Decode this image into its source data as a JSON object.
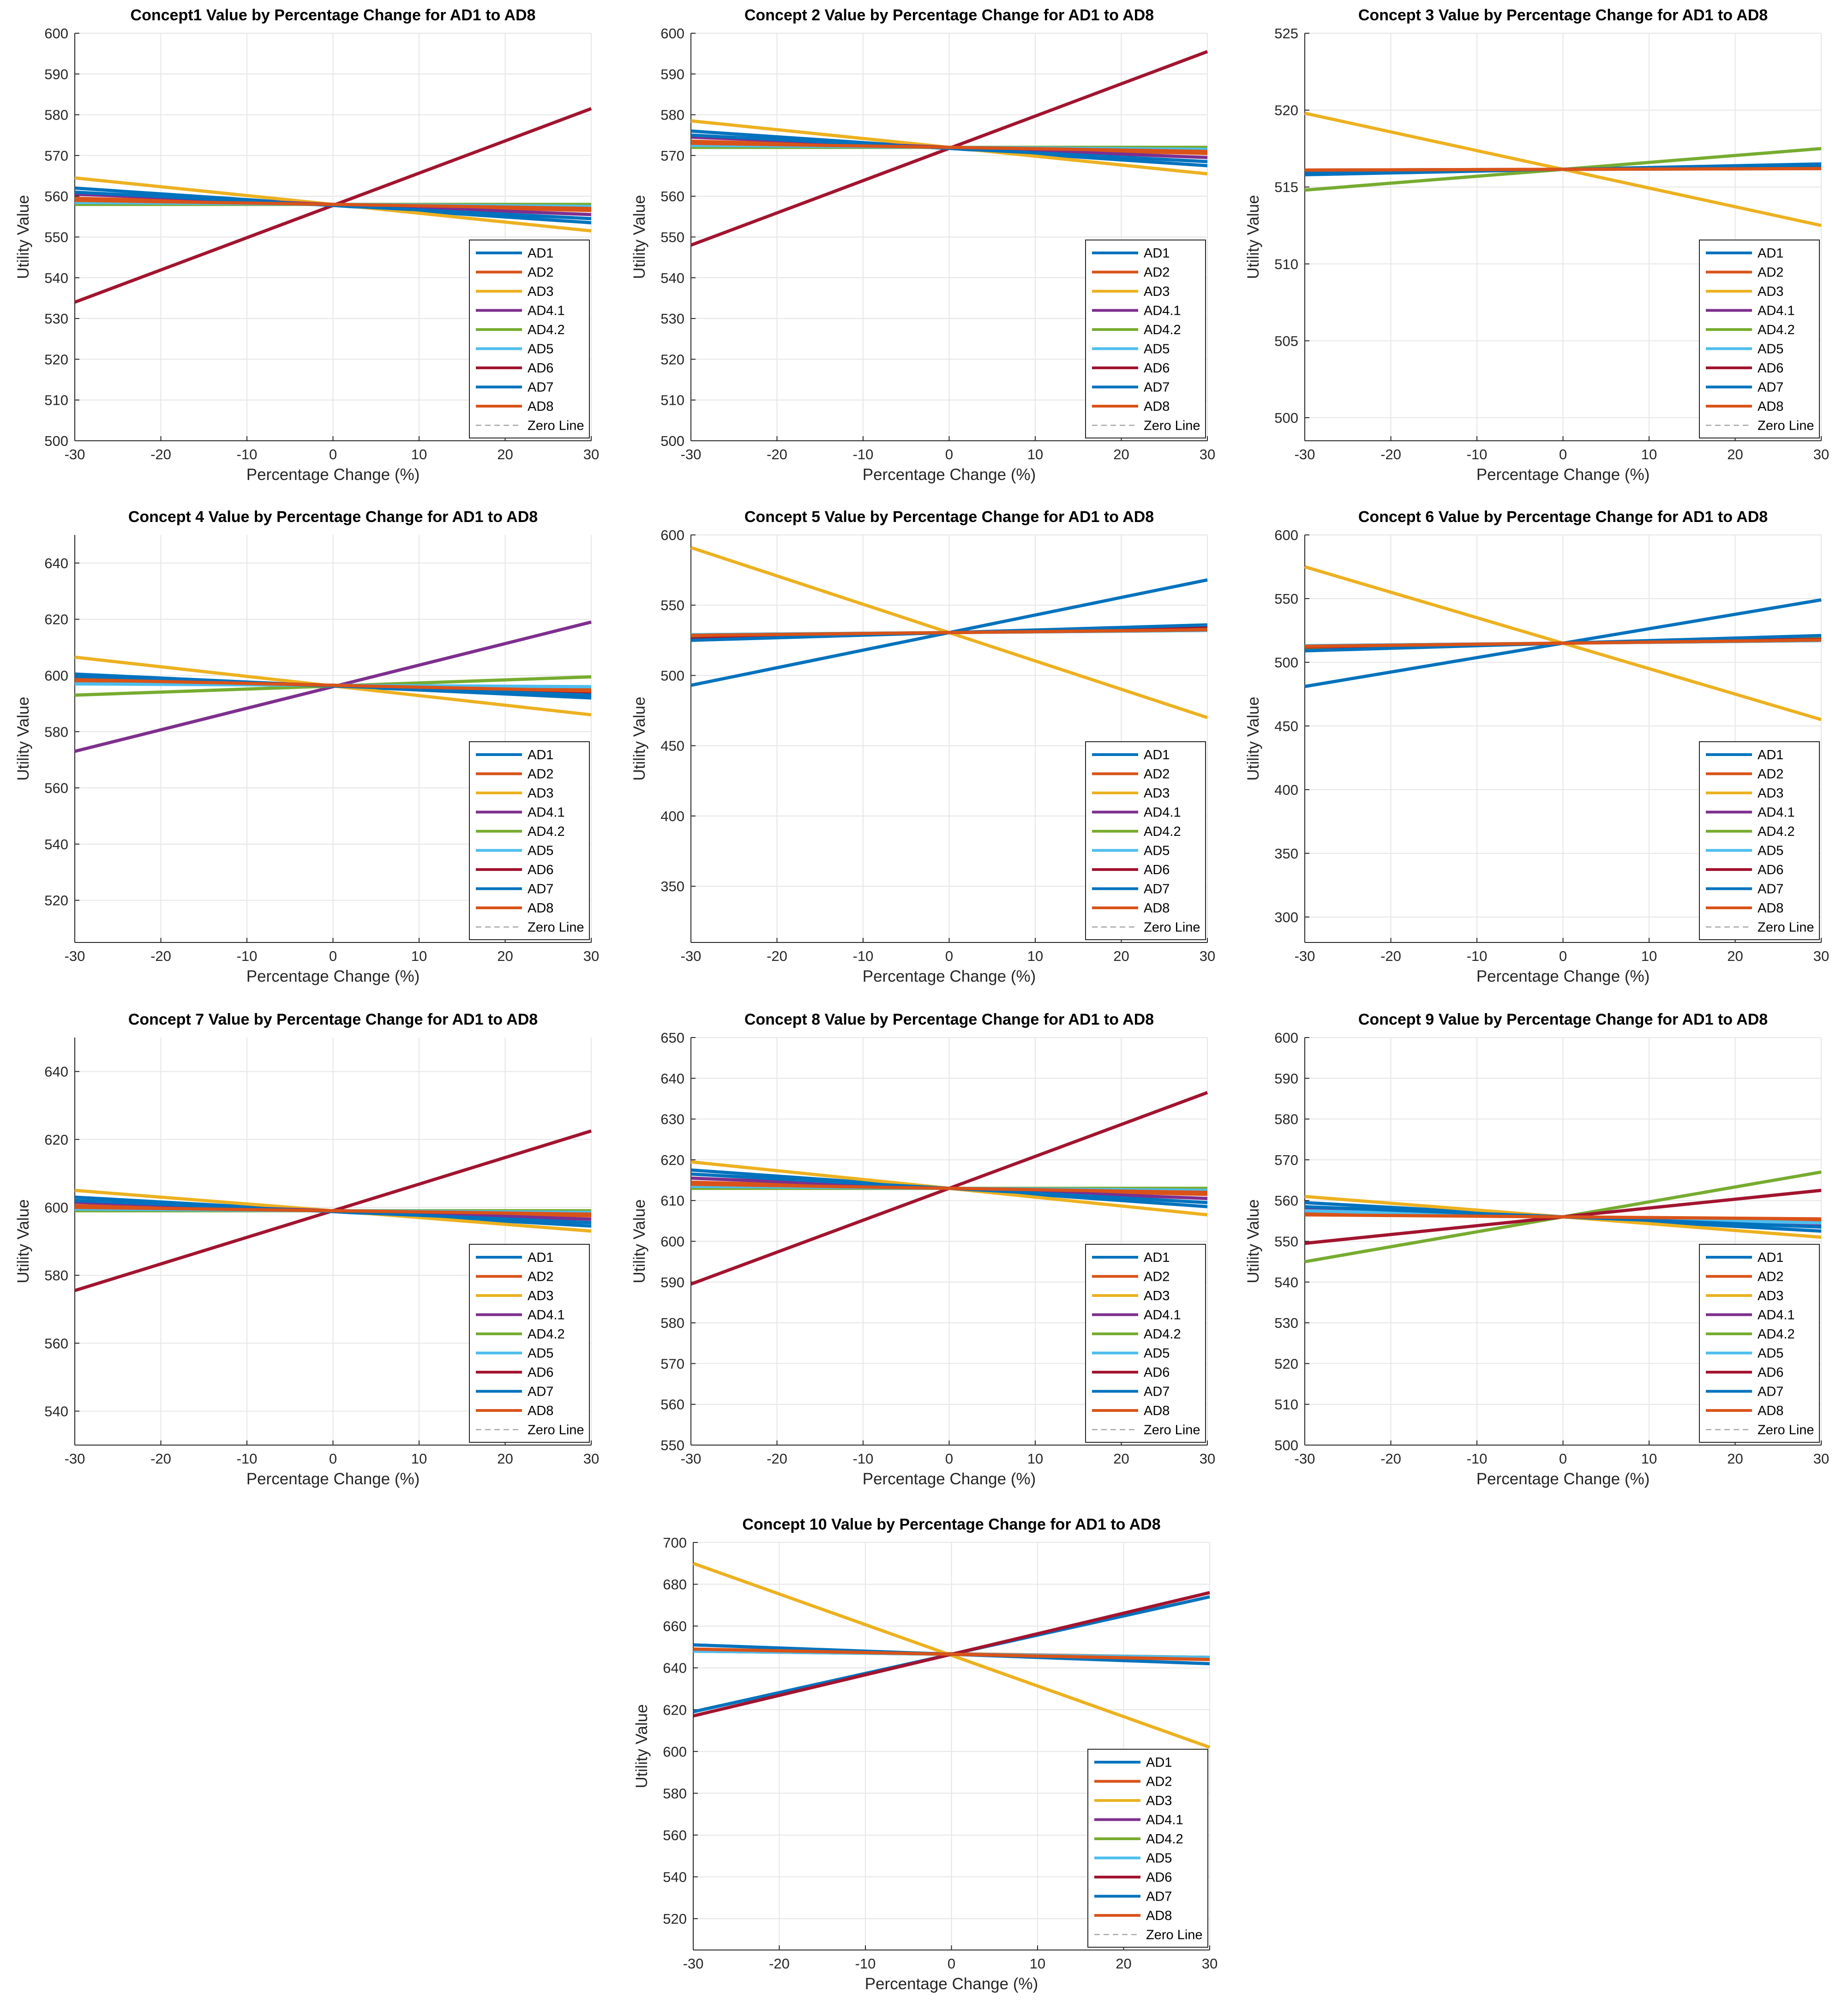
{
  "figure": {
    "panel_layout": "3x3 grid plus one centered panel in a fourth row",
    "series_colors": {
      "AD1": "#0072BD",
      "AD2": "#D95319",
      "AD3": "#EDB120",
      "AD4.1": "#7E2F8E",
      "AD4.2": "#77AC30",
      "AD5": "#4DBEEE",
      "AD6": "#A2142F",
      "AD7": "#0072BD",
      "AD8": "#D95319",
      "Zero Line": "#A6A6A6"
    },
    "legend_position": "bottom-right"
  },
  "chart_data": [
    {
      "type": "line",
      "title": "Concept1 Value by Percentage Change for AD1 to AD8",
      "xlabel": "Percentage Change (%)",
      "ylabel": "Utility Value",
      "xlim": [
        -30,
        30
      ],
      "ylim": [
        500,
        600
      ],
      "xticks": [
        -30,
        -20,
        -10,
        0,
        10,
        20,
        30
      ],
      "yticks": [
        500,
        510,
        520,
        530,
        540,
        550,
        560,
        570,
        580,
        590,
        600
      ],
      "grid": true,
      "x": [
        -30,
        30
      ],
      "series": [
        {
          "name": "AD1",
          "values": [
            562,
            553.5
          ]
        },
        {
          "name": "AD2",
          "values": [
            559.5,
            556.5
          ]
        },
        {
          "name": "AD3",
          "values": [
            564.5,
            551.5
          ]
        },
        {
          "name": "AD4.1",
          "values": [
            560.5,
            555.5
          ]
        },
        {
          "name": "AD4.2",
          "values": [
            558,
            558
          ]
        },
        {
          "name": "AD5",
          "values": [
            558.5,
            557.5
          ]
        },
        {
          "name": "AD6",
          "values": [
            534,
            581.5
          ]
        },
        {
          "name": "AD7",
          "values": [
            561,
            554.5
          ]
        },
        {
          "name": "AD8",
          "values": [
            559,
            557
          ]
        },
        {
          "name": "Zero Line",
          "values": [
            null,
            null
          ]
        }
      ]
    },
    {
      "type": "line",
      "title": "Concept 2 Value by Percentage Change for AD1 to AD8",
      "xlabel": "Percentage Change (%)",
      "ylabel": "Utility Value",
      "xlim": [
        -30,
        30
      ],
      "ylim": [
        500,
        600
      ],
      "xticks": [
        -30,
        -20,
        -10,
        0,
        10,
        20,
        30
      ],
      "yticks": [
        500,
        510,
        520,
        530,
        540,
        550,
        560,
        570,
        580,
        590,
        600
      ],
      "grid": true,
      "x": [
        -30,
        30
      ],
      "series": [
        {
          "name": "AD1",
          "values": [
            576,
            567.5
          ]
        },
        {
          "name": "AD2",
          "values": [
            573.5,
            570.5
          ]
        },
        {
          "name": "AD3",
          "values": [
            578.5,
            565.5
          ]
        },
        {
          "name": "AD4.1",
          "values": [
            574.5,
            569.5
          ]
        },
        {
          "name": "AD4.2",
          "values": [
            572,
            572
          ]
        },
        {
          "name": "AD5",
          "values": [
            572.5,
            571.5
          ]
        },
        {
          "name": "AD6",
          "values": [
            548,
            595.5
          ]
        },
        {
          "name": "AD7",
          "values": [
            575,
            568.5
          ]
        },
        {
          "name": "AD8",
          "values": [
            573,
            571
          ]
        },
        {
          "name": "Zero Line",
          "values": [
            null,
            null
          ]
        }
      ]
    },
    {
      "type": "line",
      "title": "Concept 3 Value by Percentage Change for AD1 to AD8",
      "xlabel": "Percentage Change (%)",
      "ylabel": "Utility Value",
      "xlim": [
        -30,
        30
      ],
      "ylim": [
        498.5,
        525
      ],
      "xticks": [
        -30,
        -20,
        -10,
        0,
        10,
        20,
        30
      ],
      "yticks": [
        500,
        505,
        510,
        515,
        520,
        525
      ],
      "grid": true,
      "x": [
        -30,
        30
      ],
      "series": [
        {
          "name": "AD1",
          "values": [
            515.8,
            516.5
          ]
        },
        {
          "name": "AD2",
          "values": [
            516.1,
            516.2
          ]
        },
        {
          "name": "AD3",
          "values": [
            519.8,
            512.5
          ]
        },
        {
          "name": "AD4.1",
          "values": [
            516,
            516.3
          ]
        },
        {
          "name": "AD4.2",
          "values": [
            514.8,
            517.5
          ]
        },
        {
          "name": "AD5",
          "values": [
            516.1,
            516.2
          ]
        },
        {
          "name": "AD6",
          "values": [
            516,
            516.3
          ]
        },
        {
          "name": "AD7",
          "values": [
            515.9,
            516.4
          ]
        },
        {
          "name": "AD8",
          "values": [
            516.1,
            516.2
          ]
        },
        {
          "name": "Zero Line",
          "values": [
            null,
            null
          ]
        }
      ]
    },
    {
      "type": "line",
      "title": "Concept 4 Value by Percentage Change for AD1 to AD8",
      "xlabel": "Percentage Change (%)",
      "ylabel": "Utility Value",
      "xlim": [
        -30,
        30
      ],
      "ylim": [
        505,
        650
      ],
      "xticks": [
        -30,
        -20,
        -10,
        0,
        10,
        20,
        30
      ],
      "yticks": [
        520,
        540,
        560,
        580,
        600,
        620,
        640
      ],
      "grid": true,
      "x": [
        -30,
        30
      ],
      "series": [
        {
          "name": "AD1",
          "values": [
            600.5,
            592
          ]
        },
        {
          "name": "AD2",
          "values": [
            598,
            595
          ]
        },
        {
          "name": "AD3",
          "values": [
            606.5,
            586
          ]
        },
        {
          "name": "AD4.1",
          "values": [
            573,
            619
          ]
        },
        {
          "name": "AD4.2",
          "values": [
            593,
            599.5
          ]
        },
        {
          "name": "AD5",
          "values": [
            597,
            596
          ]
        },
        {
          "name": "AD6",
          "values": [
            599,
            594
          ]
        },
        {
          "name": "AD7",
          "values": [
            599.5,
            593
          ]
        },
        {
          "name": "AD8",
          "values": [
            598.5,
            594.5
          ]
        },
        {
          "name": "Zero Line",
          "values": [
            null,
            null
          ]
        }
      ]
    },
    {
      "type": "line",
      "title": "Concept 5 Value by Percentage Change for AD1 to AD8",
      "xlabel": "Percentage Change (%)",
      "ylabel": "Utility Value",
      "xlim": [
        -30,
        30
      ],
      "ylim": [
        310,
        600
      ],
      "xticks": [
        -30,
        -20,
        -10,
        0,
        10,
        20,
        30
      ],
      "yticks": [
        350,
        400,
        450,
        500,
        550,
        600
      ],
      "grid": true,
      "x": [
        -30,
        30
      ],
      "series": [
        {
          "name": "AD1",
          "values": [
            493,
            568
          ]
        },
        {
          "name": "AD2",
          "values": [
            529,
            532
          ]
        },
        {
          "name": "AD3",
          "values": [
            591,
            470
          ]
        },
        {
          "name": "AD4.1",
          "values": [
            527,
            534
          ]
        },
        {
          "name": "AD4.2",
          "values": [
            528,
            533
          ]
        },
        {
          "name": "AD5",
          "values": [
            529,
            532
          ]
        },
        {
          "name": "AD6",
          "values": [
            526,
            535
          ]
        },
        {
          "name": "AD7",
          "values": [
            525,
            536
          ]
        },
        {
          "name": "AD8",
          "values": [
            528.5,
            532.5
          ]
        },
        {
          "name": "Zero Line",
          "values": [
            null,
            null
          ]
        }
      ]
    },
    {
      "type": "line",
      "title": "Concept 6 Value by Percentage Change for AD1 to AD8",
      "xlabel": "Percentage Change (%)",
      "ylabel": "Utility Value",
      "xlim": [
        -30,
        30
      ],
      "ylim": [
        280,
        600
      ],
      "xticks": [
        -30,
        -20,
        -10,
        0,
        10,
        20,
        30
      ],
      "yticks": [
        300,
        350,
        400,
        450,
        500,
        550,
        600
      ],
      "grid": true,
      "x": [
        -30,
        30
      ],
      "series": [
        {
          "name": "AD1",
          "values": [
            481,
            549
          ]
        },
        {
          "name": "AD2",
          "values": [
            513,
            517
          ]
        },
        {
          "name": "AD3",
          "values": [
            575,
            455
          ]
        },
        {
          "name": "AD4.1",
          "values": [
            510,
            520
          ]
        },
        {
          "name": "AD4.2",
          "values": [
            511,
            519
          ]
        },
        {
          "name": "AD5",
          "values": [
            513,
            517
          ]
        },
        {
          "name": "AD6",
          "values": [
            512,
            518
          ]
        },
        {
          "name": "AD7",
          "values": [
            509,
            521
          ]
        },
        {
          "name": "AD8",
          "values": [
            512.5,
            517.5
          ]
        },
        {
          "name": "Zero Line",
          "values": [
            null,
            null
          ]
        }
      ]
    },
    {
      "type": "line",
      "title": "Concept 7 Value by Percentage Change for AD1 to AD8",
      "xlabel": "Percentage Change (%)",
      "ylabel": "Utility Value",
      "xlim": [
        -30,
        30
      ],
      "ylim": [
        530,
        650
      ],
      "xticks": [
        -30,
        -20,
        -10,
        0,
        10,
        20,
        30
      ],
      "yticks": [
        540,
        560,
        580,
        600,
        620,
        640
      ],
      "grid": true,
      "x": [
        -30,
        30
      ],
      "series": [
        {
          "name": "AD1",
          "values": [
            603,
            594.5
          ]
        },
        {
          "name": "AD2",
          "values": [
            600.5,
            597.5
          ]
        },
        {
          "name": "AD3",
          "values": [
            605,
            593
          ]
        },
        {
          "name": "AD4.1",
          "values": [
            601.5,
            596.5
          ]
        },
        {
          "name": "AD4.2",
          "values": [
            599,
            599
          ]
        },
        {
          "name": "AD5",
          "values": [
            599.5,
            598.5
          ]
        },
        {
          "name": "AD6",
          "values": [
            575.5,
            622.5
          ]
        },
        {
          "name": "AD7",
          "values": [
            602,
            595.5
          ]
        },
        {
          "name": "AD8",
          "values": [
            600,
            598
          ]
        },
        {
          "name": "Zero Line",
          "values": [
            null,
            null
          ]
        }
      ]
    },
    {
      "type": "line",
      "title": "Concept 8 Value by Percentage Change for AD1 to AD8",
      "xlabel": "Percentage Change (%)",
      "ylabel": "Utility Value",
      "xlim": [
        -30,
        30
      ],
      "ylim": [
        550,
        650
      ],
      "xticks": [
        -30,
        -20,
        -10,
        0,
        10,
        20,
        30
      ],
      "yticks": [
        550,
        560,
        570,
        580,
        590,
        600,
        610,
        620,
        630,
        640,
        650
      ],
      "grid": true,
      "x": [
        -30,
        30
      ],
      "series": [
        {
          "name": "AD1",
          "values": [
            617.5,
            608.5
          ]
        },
        {
          "name": "AD2",
          "values": [
            614.5,
            611.5
          ]
        },
        {
          "name": "AD3",
          "values": [
            619.5,
            606.5
          ]
        },
        {
          "name": "AD4.1",
          "values": [
            615.5,
            610.5
          ]
        },
        {
          "name": "AD4.2",
          "values": [
            613,
            613
          ]
        },
        {
          "name": "AD5",
          "values": [
            613.5,
            612.5
          ]
        },
        {
          "name": "AD6",
          "values": [
            589.5,
            636.5
          ]
        },
        {
          "name": "AD7",
          "values": [
            616.5,
            609.5
          ]
        },
        {
          "name": "AD8",
          "values": [
            614,
            612
          ]
        },
        {
          "name": "Zero Line",
          "values": [
            null,
            null
          ]
        }
      ]
    },
    {
      "type": "line",
      "title": "Concept 9 Value by Percentage Change for AD1 to AD8",
      "xlabel": "Percentage Change (%)",
      "ylabel": "Utility Value",
      "xlim": [
        -30,
        30
      ],
      "ylim": [
        500,
        600
      ],
      "xticks": [
        -30,
        -20,
        -10,
        0,
        10,
        20,
        30
      ],
      "yticks": [
        500,
        510,
        520,
        530,
        540,
        550,
        560,
        570,
        580,
        590,
        600
      ],
      "grid": true,
      "x": [
        -30,
        30
      ],
      "series": [
        {
          "name": "AD1",
          "values": [
            559.5,
            552.5
          ]
        },
        {
          "name": "AD2",
          "values": [
            557,
            555
          ]
        },
        {
          "name": "AD3",
          "values": [
            561,
            551
          ]
        },
        {
          "name": "AD4.1",
          "values": [
            558,
            554
          ]
        },
        {
          "name": "AD4.2",
          "values": [
            545,
            567
          ]
        },
        {
          "name": "AD5",
          "values": [
            557.5,
            554.5
          ]
        },
        {
          "name": "AD6",
          "values": [
            549.5,
            562.5
          ]
        },
        {
          "name": "AD7",
          "values": [
            558.5,
            553.5
          ]
        },
        {
          "name": "AD8",
          "values": [
            556.5,
            555.5
          ]
        },
        {
          "name": "Zero Line",
          "values": [
            null,
            null
          ]
        }
      ]
    },
    {
      "type": "line",
      "title": "Concept 10 Value by Percentage Change for AD1 to AD8",
      "xlabel": "Percentage Change (%)",
      "ylabel": "Utility Value",
      "xlim": [
        -30,
        30
      ],
      "ylim": [
        505,
        700
      ],
      "xticks": [
        -30,
        -20,
        -10,
        0,
        10,
        20,
        30
      ],
      "yticks": [
        520,
        540,
        560,
        580,
        600,
        620,
        640,
        660,
        680,
        700
      ],
      "grid": true,
      "x": [
        -30,
        30
      ],
      "series": [
        {
          "name": "AD1",
          "values": [
            619,
            674
          ]
        },
        {
          "name": "AD2",
          "values": [
            648.5,
            645
          ]
        },
        {
          "name": "AD3",
          "values": [
            690,
            602
          ]
        },
        {
          "name": "AD4.1",
          "values": [
            648,
            645
          ]
        },
        {
          "name": "AD4.2",
          "values": [
            648,
            645
          ]
        },
        {
          "name": "AD5",
          "values": [
            648,
            645
          ]
        },
        {
          "name": "AD6",
          "values": [
            617,
            676
          ]
        },
        {
          "name": "AD7",
          "values": [
            651,
            642
          ]
        },
        {
          "name": "AD8",
          "values": [
            649,
            644
          ]
        },
        {
          "name": "Zero Line",
          "values": [
            null,
            null
          ]
        }
      ]
    }
  ]
}
